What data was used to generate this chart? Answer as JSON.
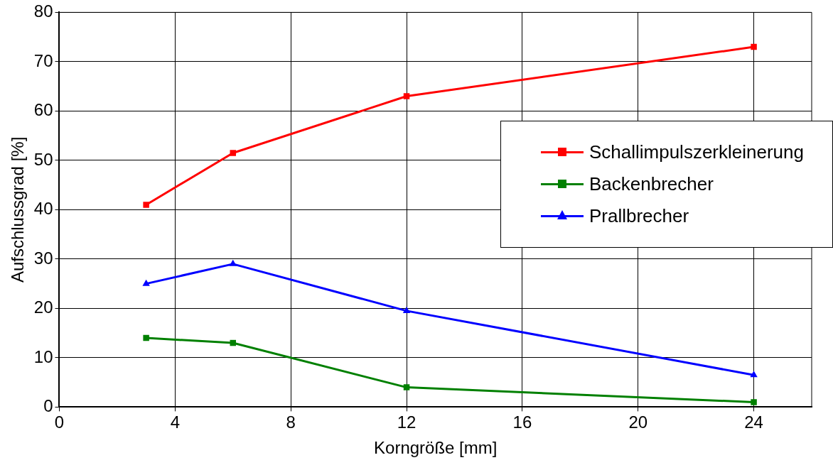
{
  "chart_data": {
    "type": "line",
    "xlabel": "Korngröße [mm]",
    "ylabel": "Aufschlussgrad [%]",
    "x": [
      3,
      6,
      12,
      24
    ],
    "series": [
      {
        "name": "Schallimpulszerkleinerung",
        "color": "#ff0000",
        "marker": "square",
        "values": [
          41,
          51.5,
          63,
          73
        ]
      },
      {
        "name": "Backenbrecher",
        "color": "#008000",
        "marker": "square",
        "values": [
          14,
          13,
          4,
          1
        ]
      },
      {
        "name": "Prallbrecher",
        "color": "#0000ff",
        "marker": "triangle",
        "values": [
          25,
          29,
          19.5,
          6.5
        ]
      }
    ],
    "xlim": [
      0,
      26
    ],
    "xticks": [
      0,
      4,
      8,
      12,
      16,
      20,
      24
    ],
    "ylim": [
      0,
      80
    ],
    "yticks": [
      0,
      10,
      20,
      30,
      40,
      50,
      60,
      70,
      80
    ],
    "grid": true,
    "legend": "right",
    "line_style": "solid"
  }
}
